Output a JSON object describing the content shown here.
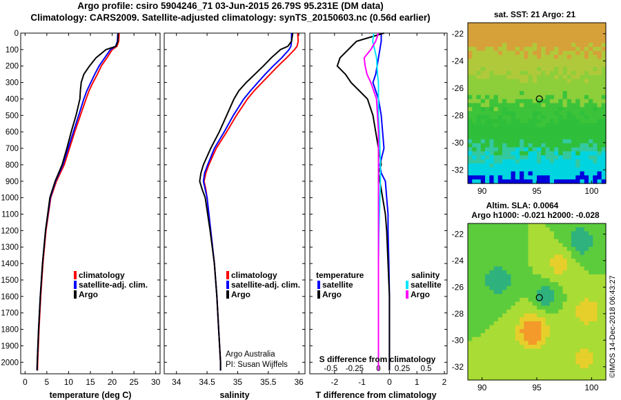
{
  "title": {
    "line1": "Argo profile: csiro 5904246_71 03-Jun-2015 26.79S 95.231E (DM data)",
    "line2": "Climatology: CARS2009. Satellite-adjusted climatology: synTS_20150603.nc (0.56d earlier)"
  },
  "footer": {
    "credit": "©IMOS 14-Dec-2018 06:43:27"
  },
  "colors": {
    "clim": "#ff0000",
    "sat": "#0000ff",
    "argo": "#000000",
    "sat_s": "#00e5ff",
    "argo_s": "#ff00ff"
  },
  "chart_data": [
    {
      "type": "line",
      "id": "temperature",
      "xlabel": "temperature (deg C)",
      "xlim": [
        -1,
        31
      ],
      "xticks": [
        "0",
        "5",
        "10",
        "15",
        "20",
        "25",
        "30"
      ],
      "xtick_values": [
        0,
        5,
        10,
        15,
        20,
        25,
        30
      ],
      "ylim": [
        2070,
        0
      ],
      "yticks": [
        "0",
        "100",
        "200",
        "300",
        "400",
        "500",
        "600",
        "700",
        "800",
        "900",
        "1000",
        "1100",
        "1200",
        "1300",
        "1400",
        "1500",
        "1600",
        "1700",
        "1800",
        "1900",
        "2000"
      ],
      "ytick_values": [
        0,
        100,
        200,
        300,
        400,
        500,
        600,
        700,
        800,
        900,
        1000,
        1100,
        1200,
        1300,
        1400,
        1500,
        1600,
        1700,
        1800,
        1900,
        2000
      ],
      "depth": [
        0,
        50,
        80,
        100,
        150,
        200,
        250,
        300,
        350,
        400,
        500,
        600,
        700,
        800,
        900,
        1000,
        1200,
        1400,
        1600,
        1800,
        2000,
        2050
      ],
      "series": [
        {
          "name": "climatology",
          "values": [
            21.6,
            21.5,
            21.1,
            20.0,
            18.8,
            17.5,
            16.6,
            15.6,
            14.7,
            14.0,
            12.7,
            11.4,
            10.2,
            9.0,
            7.2,
            5.9,
            4.8,
            4.1,
            3.6,
            3.2,
            2.9,
            2.85
          ]
        },
        {
          "name": "satellite-adj. clim.",
          "values": [
            21.3,
            21.2,
            20.8,
            19.6,
            18.3,
            17.0,
            16.0,
            15.1,
            14.2,
            13.5,
            12.3,
            11.1,
            9.9,
            8.7,
            7.0,
            5.8,
            4.7,
            4.0,
            3.5,
            3.1,
            2.8,
            2.75
          ]
        },
        {
          "name": "Argo",
          "values": [
            21.4,
            21.3,
            20.9,
            18.6,
            16.3,
            14.8,
            13.5,
            12.9,
            12.7,
            12.6,
            11.7,
            10.6,
            9.6,
            8.5,
            6.9,
            5.7,
            4.7,
            4.0,
            3.5,
            3.1,
            2.8,
            2.75
          ]
        }
      ],
      "legend": [
        "climatology",
        "satellite-adj. clim.",
        "Argo"
      ]
    },
    {
      "type": "line",
      "id": "salinity",
      "xlabel": "salinity",
      "xlim": [
        33.8,
        36.1
      ],
      "xticks": [
        "34",
        "34.5",
        "35",
        "35.5",
        "36"
      ],
      "xtick_values": [
        34,
        34.5,
        35,
        35.5,
        36
      ],
      "ylim": [
        2070,
        0
      ],
      "depth": [
        0,
        50,
        80,
        100,
        150,
        200,
        250,
        300,
        350,
        400,
        500,
        600,
        700,
        800,
        850,
        900,
        950,
        1000,
        1200,
        1400,
        1600,
        1800,
        2000,
        2050
      ],
      "series": [
        {
          "name": "climatology",
          "values": [
            35.98,
            35.99,
            35.97,
            35.93,
            35.8,
            35.66,
            35.53,
            35.4,
            35.27,
            35.16,
            34.98,
            34.82,
            34.65,
            34.53,
            34.48,
            34.45,
            34.48,
            34.5,
            34.56,
            34.62,
            34.66,
            34.69,
            34.72,
            34.72
          ]
        },
        {
          "name": "satellite-adj. clim.",
          "values": [
            35.88,
            35.88,
            35.87,
            35.84,
            35.72,
            35.58,
            35.45,
            35.33,
            35.21,
            35.1,
            34.93,
            34.78,
            34.62,
            34.51,
            34.46,
            34.44,
            34.47,
            34.5,
            34.56,
            34.62,
            34.66,
            34.69,
            34.72,
            34.72
          ]
        },
        {
          "name": "Argo",
          "values": [
            35.9,
            35.88,
            35.82,
            35.7,
            35.55,
            35.42,
            35.28,
            35.14,
            35.02,
            34.94,
            34.82,
            34.7,
            34.56,
            34.44,
            34.4,
            34.38,
            34.42,
            34.47,
            34.55,
            34.62,
            34.66,
            34.69,
            34.72,
            34.72
          ]
        }
      ],
      "legend": [
        "climatology",
        "satellite-adj. clim.",
        "Argo"
      ],
      "annotation": [
        "Argo Australia",
        "PI: Susan Wijffels"
      ]
    },
    {
      "type": "line",
      "id": "difference",
      "xlabel": "T difference from climatology",
      "xlim": [
        -2.9,
        2.1
      ],
      "xticks": [
        "-2",
        "-1",
        "0",
        "1",
        "2"
      ],
      "xtick_values": [
        -2,
        -1,
        0,
        1,
        2
      ],
      "top_axis_label": "S difference from climatology",
      "top_ticks": [
        "-0.5",
        "-0.25",
        "0",
        "0.25",
        "0.5"
      ],
      "top_tick_values": [
        -0.5,
        -0.25,
        0,
        0.25,
        0.5
      ],
      "ylim": [
        2070,
        0
      ],
      "depth": [
        0,
        50,
        100,
        150,
        200,
        250,
        300,
        350,
        400,
        500,
        600,
        700,
        800,
        850,
        900,
        1000,
        1100,
        1200,
        1400,
        1600,
        1800,
        2000,
        2050
      ],
      "series": [
        {
          "name": "T satellite",
          "axis": "T",
          "values": [
            -0.3,
            -0.3,
            -0.35,
            -0.4,
            -0.45,
            -0.5,
            -0.6,
            -0.5,
            -0.4,
            -0.3,
            -0.25,
            -0.2,
            -0.35,
            -0.3,
            -0.15,
            -0.1,
            -0.05,
            -0.05,
            -0.02,
            0,
            0,
            0,
            0
          ]
        },
        {
          "name": "T Argo",
          "axis": "T",
          "values": [
            -0.2,
            -1.2,
            -1.5,
            -1.8,
            -1.9,
            -1.6,
            -1.4,
            -1.1,
            -0.8,
            -0.6,
            -0.5,
            -0.4,
            -0.3,
            -0.4,
            -0.35,
            -0.25,
            -0.15,
            -0.1,
            -0.05,
            0,
            0,
            0,
            0
          ]
        },
        {
          "name": "S satellite",
          "axis": "S",
          "values": [
            -0.05,
            -0.06,
            -0.04,
            -0.02,
            -0.015,
            -0.01,
            0,
            0,
            0,
            0,
            0.01,
            0.015,
            0.02,
            0.02,
            0.02,
            0.015,
            0.01,
            0.005,
            0,
            0,
            0,
            0,
            0
          ]
        },
        {
          "name": "S Argo",
          "axis": "S",
          "values": [
            0,
            -0.03,
            -0.08,
            -0.15,
            -0.14,
            -0.12,
            -0.08,
            -0.05,
            -0.02,
            -0.01,
            0,
            0,
            0,
            0,
            0,
            0,
            0,
            0,
            0,
            0,
            0,
            0,
            0
          ]
        }
      ],
      "legend_t_title": "temperature",
      "legend_s_title": "salinity",
      "legend_t": [
        "satellite",
        "Argo"
      ],
      "legend_s": [
        "satellite",
        "Argo"
      ]
    }
  ],
  "maps": {
    "sst": {
      "title": "sat. SST: 21 Argo: 21",
      "xticks": [
        "90",
        "95",
        "100"
      ],
      "yticks": [
        "-22",
        "-24",
        "-26",
        "-28",
        "-30",
        "-32"
      ]
    },
    "sla": {
      "title1": "Altim. SLA: 0.0064",
      "title2": "Argo h1000: -0.021 h2000: -0.028",
      "xticks": [
        "90",
        "95",
        "100"
      ],
      "yticks": [
        "-22",
        "-24",
        "-26",
        "-28",
        "-30",
        "-32"
      ]
    }
  }
}
